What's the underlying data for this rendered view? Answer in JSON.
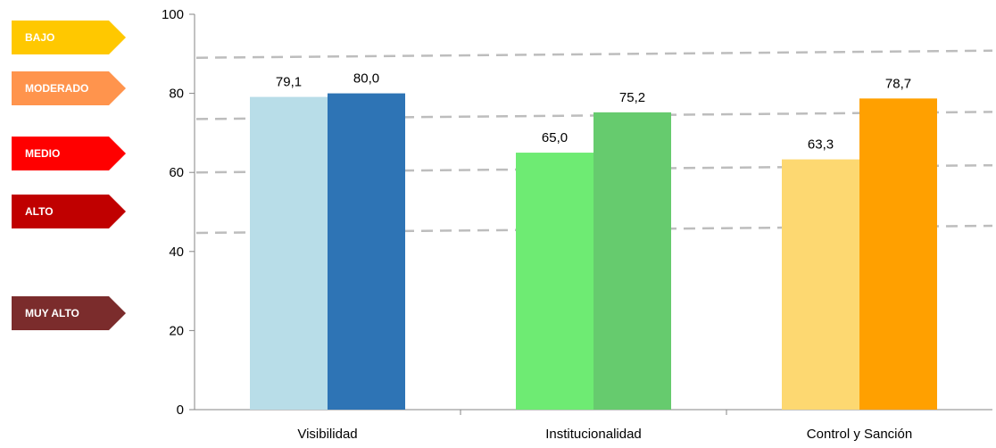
{
  "risk_scale": [
    {
      "label": "BAJO",
      "color": "#FFC800"
    },
    {
      "label": "MODERADO",
      "color": "#FF944D"
    },
    {
      "label": "MEDIO",
      "color": "#FF0000"
    },
    {
      "label": "ALTO",
      "color": "#C00000"
    },
    {
      "label": "MUY ALTO",
      "color": "#7B2C2C"
    }
  ],
  "risk_thresholds": [
    89,
    73.5,
    60,
    44.7
  ],
  "chart_data": {
    "type": "bar",
    "title": "",
    "xlabel": "",
    "ylabel": "",
    "ylim": [
      0,
      100
    ],
    "yticks": [
      "0",
      "20",
      "40",
      "60",
      "80",
      "100"
    ],
    "grid": false,
    "categories": [
      "Visibilidad",
      "Institucionalidad",
      "Control y Sanción"
    ],
    "values": [
      [
        79.1,
        80.0
      ],
      [
        65.0,
        75.2
      ],
      [
        63.3,
        78.7
      ]
    ],
    "value_labels": [
      [
        "79,1",
        "80,0"
      ],
      [
        "65,0",
        "75,2"
      ],
      [
        "63,3",
        "78,7"
      ]
    ],
    "bar_colors": [
      [
        "#B8DDE8",
        "#2E74B5"
      ],
      [
        "#6EEB73",
        "#66CB6E"
      ],
      [
        "#FDD871",
        "#FFA000"
      ]
    ]
  }
}
